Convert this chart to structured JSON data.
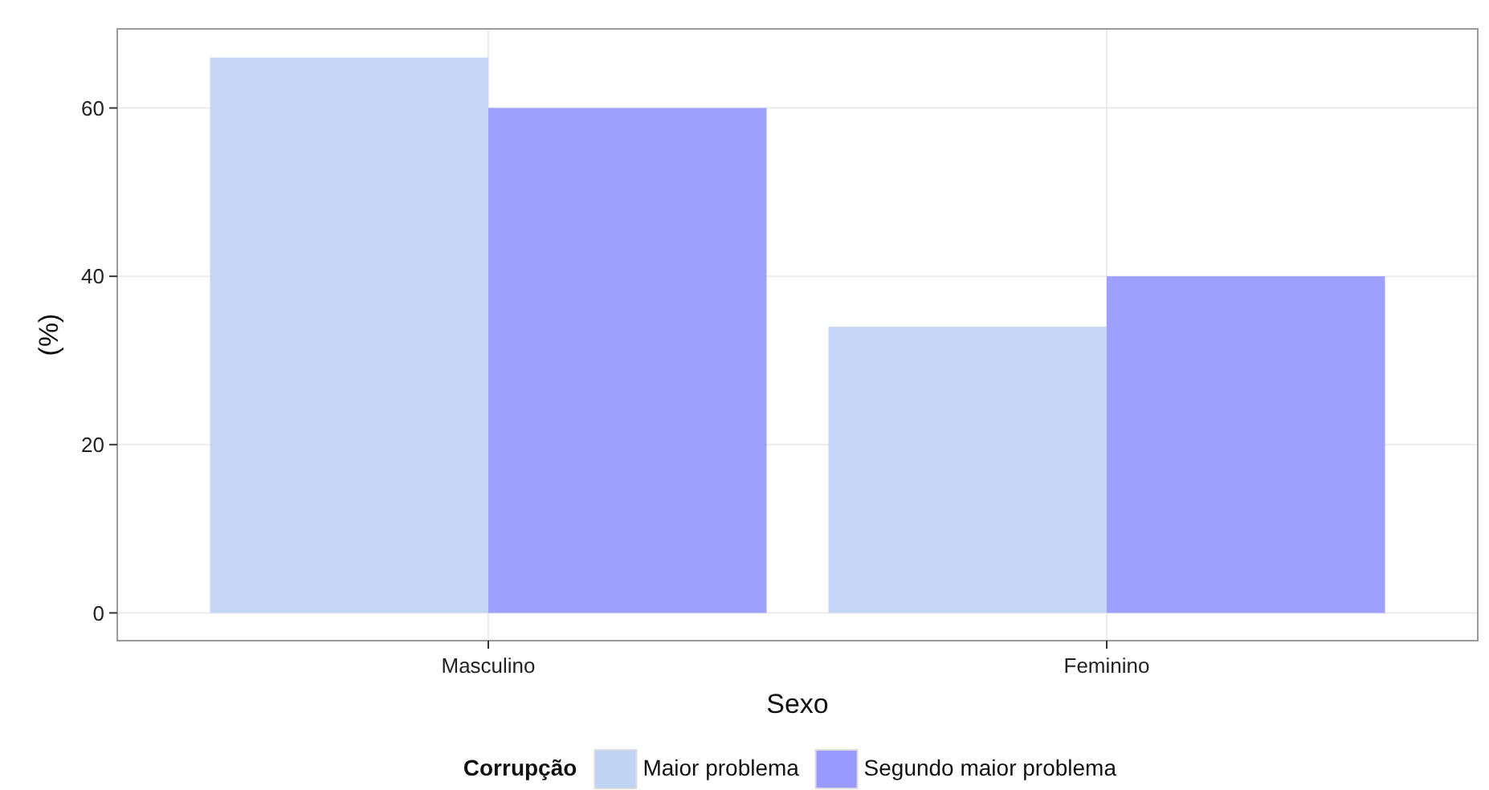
{
  "chart_data": {
    "type": "bar",
    "xlabel": "Sexo",
    "ylabel": "(%)",
    "legend_title": "Corrupção",
    "categories": [
      "Masculino",
      "Feminino"
    ],
    "series": [
      {
        "name": "Maior problema",
        "color": "#c1d3f5",
        "values": [
          66,
          34
        ]
      },
      {
        "name": "Segundo maior problema",
        "color": "#9a9afe",
        "values": [
          60,
          40
        ]
      }
    ],
    "ylim": [
      -3.3,
      69.4
    ],
    "yticks": [
      0,
      20,
      40,
      60
    ],
    "grid": true,
    "legend": "bottom"
  }
}
